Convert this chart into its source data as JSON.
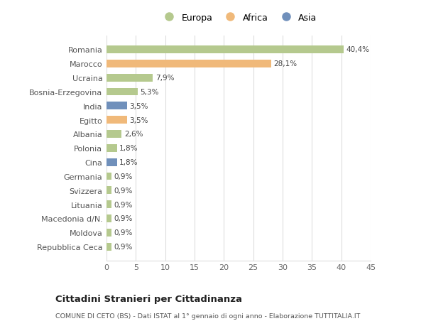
{
  "categories": [
    "Repubblica Ceca",
    "Moldova",
    "Macedonia d/N.",
    "Lituania",
    "Svizzera",
    "Germania",
    "Cina",
    "Polonia",
    "Albania",
    "Egitto",
    "India",
    "Bosnia-Erzegovina",
    "Ucraina",
    "Marocco",
    "Romania"
  ],
  "values": [
    0.9,
    0.9,
    0.9,
    0.9,
    0.9,
    0.9,
    1.8,
    1.8,
    2.6,
    3.5,
    3.5,
    5.3,
    7.9,
    28.1,
    40.4
  ],
  "labels": [
    "0,9%",
    "0,9%",
    "0,9%",
    "0,9%",
    "0,9%",
    "0,9%",
    "1,8%",
    "1,8%",
    "2,6%",
    "3,5%",
    "3,5%",
    "5,3%",
    "7,9%",
    "28,1%",
    "40,4%"
  ],
  "colors": [
    "#b5c98e",
    "#b5c98e",
    "#b5c98e",
    "#b5c98e",
    "#b5c98e",
    "#b5c98e",
    "#7090bb",
    "#b5c98e",
    "#b5c98e",
    "#f0b97a",
    "#7090bb",
    "#b5c98e",
    "#b5c98e",
    "#f0b97a",
    "#b5c98e"
  ],
  "legend_labels": [
    "Europa",
    "Africa",
    "Asia"
  ],
  "legend_colors": [
    "#b5c98e",
    "#f0b97a",
    "#7090bb"
  ],
  "title": "Cittadini Stranieri per Cittadinanza",
  "subtitle": "COMUNE DI CETO (BS) - Dati ISTAT al 1° gennaio di ogni anno - Elaborazione TUTTITALIA.IT",
  "xlim": [
    0,
    45
  ],
  "xticks": [
    0,
    5,
    10,
    15,
    20,
    25,
    30,
    35,
    40,
    45
  ],
  "background_color": "#ffffff",
  "grid_color": "#dddddd",
  "bar_height": 0.55
}
